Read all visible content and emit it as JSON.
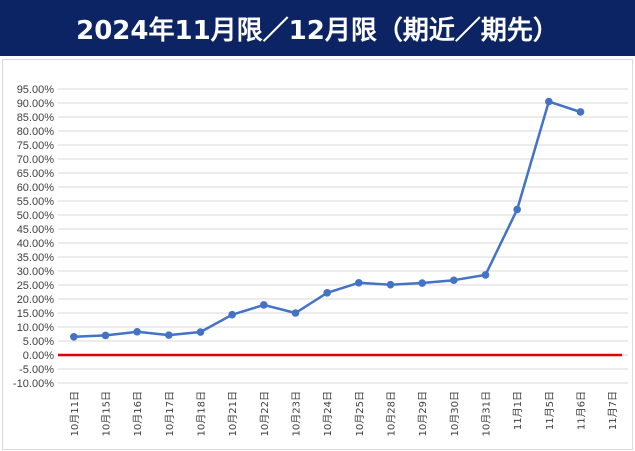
{
  "header": {
    "title": "2024年11月限／12月限（期近／期先）",
    "background_color": "#0c2463",
    "text_color": "#ffffff"
  },
  "chart_data": {
    "type": "line",
    "title": "",
    "xlabel": "",
    "ylabel": "",
    "categories": [
      "10月11日",
      "10月15日",
      "10月16日",
      "10月17日",
      "10月18日",
      "10月21日",
      "10月22日",
      "10月23日",
      "10月24日",
      "10月25日",
      "10月28日",
      "10月29日",
      "10月30日",
      "10月31日",
      "11月1日",
      "11月5日",
      "11月6日",
      "11月7日"
    ],
    "series": [
      {
        "values": [
          6.5,
          7.0,
          8.3,
          7.1,
          8.2,
          14.4,
          17.9,
          15.0,
          22.2,
          25.8,
          25.1,
          25.7,
          26.7,
          28.6,
          52.0,
          90.5,
          86.8,
          null
        ],
        "color": "#4472c4"
      }
    ],
    "baseline": {
      "value": 0,
      "color": "#e00000"
    },
    "ylim": [
      -10,
      95
    ],
    "yticks": [
      "-10.00%",
      "-5.00%",
      "0.00%",
      "5.00%",
      "10.00%",
      "15.00%",
      "20.00%",
      "25.00%",
      "30.00%",
      "35.00%",
      "40.00%",
      "45.00%",
      "50.00%",
      "55.00%",
      "60.00%",
      "65.00%",
      "70.00%",
      "75.00%",
      "80.00%",
      "85.00%",
      "90.00%",
      "95.00%"
    ],
    "ytick_values": [
      -10,
      -5,
      0,
      5,
      10,
      15,
      20,
      25,
      30,
      35,
      40,
      45,
      50,
      55,
      60,
      65,
      70,
      75,
      80,
      85,
      90,
      95
    ],
    "grid": true,
    "legend": "none"
  }
}
